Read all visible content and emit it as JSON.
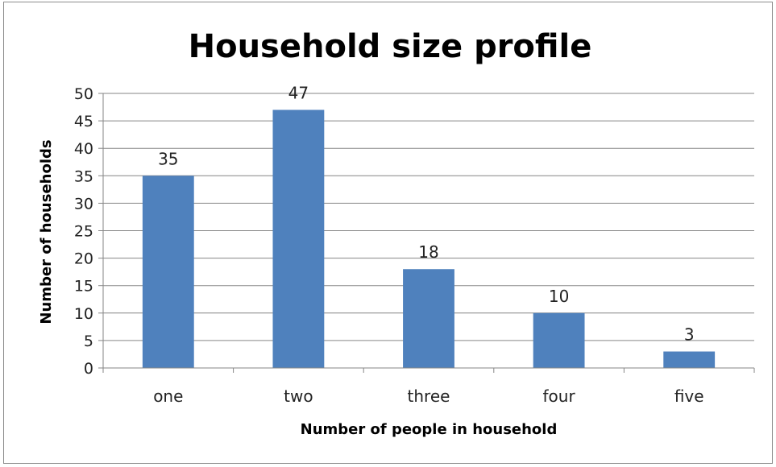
{
  "chart_data": {
    "type": "bar",
    "title": "Household size profile",
    "xlabel": "Number of people in household",
    "ylabel": "Number of households",
    "categories": [
      "one",
      "two",
      "three",
      "four",
      "five"
    ],
    "values": [
      35,
      47,
      18,
      10,
      3
    ],
    "ylim": [
      0,
      50
    ],
    "yticks": [
      0,
      5,
      10,
      15,
      20,
      25,
      30,
      35,
      40,
      45,
      50
    ],
    "grid": true,
    "legend": "none",
    "data_labels": true,
    "bar_color": "#4F81BD",
    "gridline_color": "#868686"
  }
}
